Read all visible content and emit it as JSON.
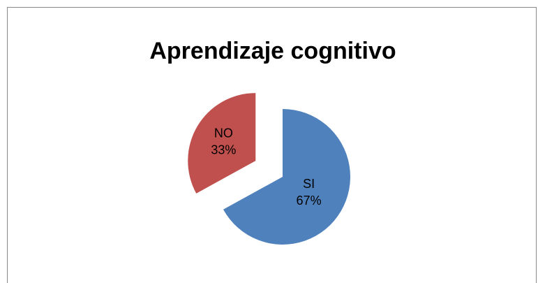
{
  "chart_data": {
    "type": "pie",
    "title": "Aprendizaje cognitivo",
    "categories": [
      "SI",
      "NO"
    ],
    "values": [
      67,
      33
    ],
    "value_labels": [
      "67%",
      "33%"
    ],
    "colors": [
      "#4f81bd",
      "#c0504d"
    ],
    "exploded": [
      false,
      true
    ]
  }
}
